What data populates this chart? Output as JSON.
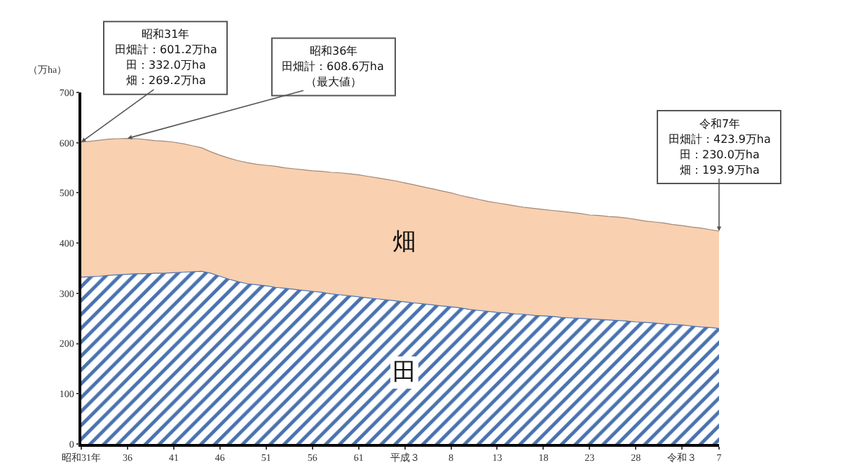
{
  "chart_data": {
    "type": "area",
    "stacked": true,
    "ylabel": "（万ha）",
    "categories": [
      "昭和31年",
      null,
      null,
      null,
      null,
      "36",
      null,
      null,
      null,
      null,
      "41",
      null,
      null,
      null,
      null,
      "46",
      null,
      null,
      null,
      null,
      "51",
      null,
      null,
      null,
      null,
      "56",
      null,
      null,
      null,
      null,
      "61",
      null,
      null,
      null,
      null,
      "平成３",
      null,
      null,
      null,
      null,
      "8",
      null,
      null,
      null,
      null,
      "13",
      null,
      null,
      null,
      null,
      "18",
      null,
      null,
      null,
      null,
      "23",
      null,
      null,
      null,
      null,
      "28",
      null,
      null,
      null,
      null,
      "令和３",
      null,
      null,
      null,
      "7"
    ],
    "series": [
      {
        "name": "田",
        "color": "#4a72b0",
        "values": [
          332.0,
          333,
          334,
          336,
          337,
          338,
          339,
          339,
          340,
          340,
          341,
          342,
          343,
          344,
          340,
          334,
          328,
          323,
          319,
          317,
          315,
          312,
          310,
          308,
          306,
          304,
          302,
          299,
          297,
          295,
          293,
          291,
          289,
          287,
          285,
          283,
          281,
          279,
          277,
          275,
          273,
          271,
          268,
          266,
          264,
          262,
          261,
          259,
          258,
          256,
          255,
          254,
          252,
          251,
          250,
          249,
          248,
          247,
          246,
          245,
          243,
          242,
          241,
          239,
          238,
          237,
          235,
          233,
          232,
          230.0
        ]
      },
      {
        "name": "畑",
        "color": "#f9d0b0",
        "values": [
          269.2,
          270,
          271,
          271,
          271,
          270.6,
          269,
          267,
          264,
          263,
          260,
          256,
          251,
          246,
          242,
          241,
          241,
          241,
          241,
          240,
          240,
          241,
          240,
          240,
          240,
          240,
          241,
          242,
          243,
          243,
          243,
          242,
          241,
          240,
          239,
          237,
          235,
          233,
          231,
          229,
          227,
          224,
          223,
          221,
          219,
          218,
          216,
          215,
          213,
          213,
          212,
          211,
          211,
          210,
          209,
          207,
          207,
          206,
          206,
          205,
          204,
          202,
          201,
          201,
          199,
          198,
          197,
          197,
          195,
          193.9
        ]
      }
    ],
    "ylim": [
      0,
      700
    ],
    "yticks": [
      0,
      100,
      200,
      300,
      400,
      500,
      600,
      700
    ],
    "grid": false,
    "legend": false,
    "annotations": [
      "昭和31年",
      "田畑計：601.2万ha",
      "田：332.0万ha",
      {
        "text": "畑：269.2万ha",
        "x": "昭和31年",
        "y": 601.2
      },
      "昭和36年",
      "田畑計：608.6万ha",
      {
        "text": "（最大値）",
        "x": "36",
        "y": 608.6
      },
      "令和7年",
      "田畑計：423.9万ha",
      "田：230.0万ha",
      {
        "text": "畑：193.9万ha",
        "x": "7",
        "y": 423.9
      }
    ]
  }
}
